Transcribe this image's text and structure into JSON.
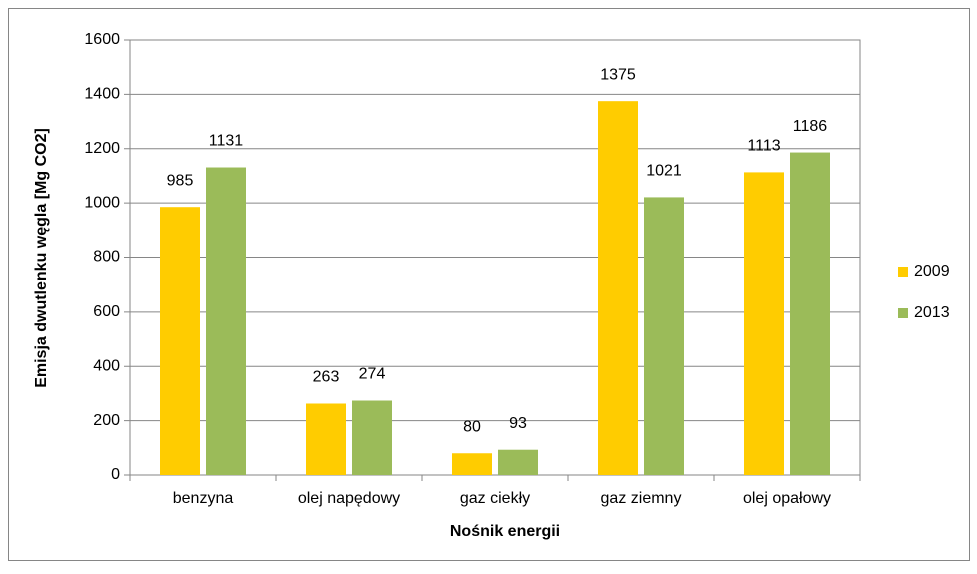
{
  "chart_data": {
    "type": "bar",
    "x_label": "Nośnik energii",
    "y_label": "Emisja dwutlenku węgla [Mg CO2]",
    "categories": [
      "benzyna",
      "olej napędowy",
      "gaz ciekły",
      "gaz ziemny",
      "olej opałowy"
    ],
    "series": [
      {
        "name": "2009",
        "color": "#ffcc00",
        "values": [
          985,
          263,
          80,
          1375,
          1113
        ]
      },
      {
        "name": "2013",
        "color": "#9bbb59",
        "values": [
          1131,
          274,
          93,
          1021,
          1186
        ]
      }
    ],
    "ylim": [
      0,
      1600
    ],
    "yticks": [
      0,
      200,
      400,
      600,
      800,
      1000,
      1200,
      1400,
      1600
    ],
    "grid": true,
    "legend": "right"
  }
}
